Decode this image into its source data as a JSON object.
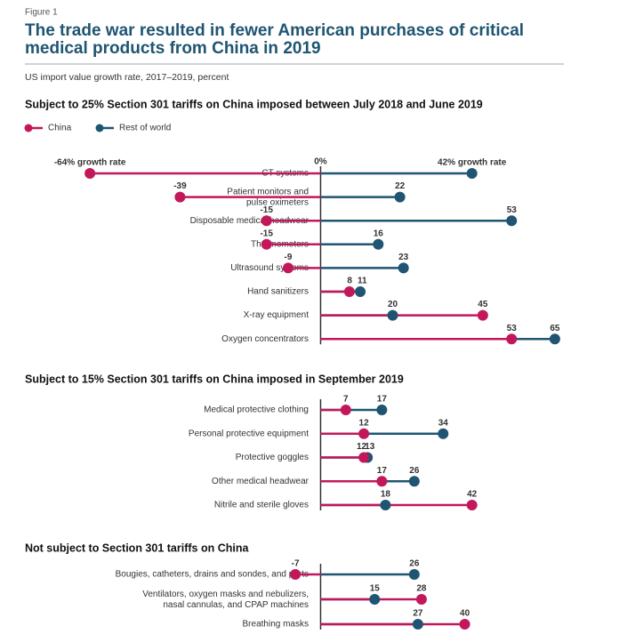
{
  "header": {
    "figure": "Figure 1",
    "title": [
      "The trade war resulted in fewer American purchases of critical",
      "medical products from China in 2019"
    ],
    "subtitle": "US import value growth rate, 2017–2019, percent"
  },
  "chart_data": [
    {
      "type": "lollipop",
      "title": "Subject to 25% Section 301 tariffs on China imposed between July 2018 and June 2019",
      "categories": [
        "CT systems",
        "Patient monitors and\npulse oximeters",
        "Disposable medical headwear",
        "Thermometers",
        "Ultrasound systems",
        "Hand sanitizers",
        "X-ray equipment",
        "Oxygen concentrators"
      ],
      "series": [
        {
          "name": "China",
          "color": "#c2185b",
          "values": [
            -64,
            -39,
            -15,
            -15,
            -9,
            8,
            45,
            53
          ],
          "value_labels": [
            "-64% growth rate",
            "-39",
            "-15",
            "-15",
            "-9",
            "8",
            "45",
            "53"
          ]
        },
        {
          "name": "Rest of world",
          "color": "#1f5572",
          "values": [
            42,
            22,
            53,
            16,
            23,
            11,
            20,
            65
          ],
          "value_labels": [
            "42% growth rate",
            "22",
            "53",
            "16",
            "23",
            "11",
            "20",
            "65"
          ]
        }
      ],
      "xlim": [
        -66,
        67
      ],
      "xticks": [
        {
          "value": 0,
          "label": "0%"
        }
      ],
      "legend": "top-left"
    },
    {
      "type": "lollipop",
      "title": "Subject to 15% Section 301 tariffs on China imposed in September 2019",
      "categories": [
        "Medical protective clothing",
        "Personal protective equipment",
        "Protective goggles",
        "Other medical headwear",
        "Nitrile and sterile gloves"
      ],
      "series": [
        {
          "name": "China",
          "color": "#c2185b",
          "values": [
            7,
            12,
            12,
            17,
            42
          ]
        },
        {
          "name": "Rest of world",
          "color": "#1f5572",
          "values": [
            17,
            34,
            13,
            26,
            18
          ]
        }
      ],
      "xlim": [
        -66,
        67
      ]
    },
    {
      "type": "lollipop",
      "title": "Not subject to Section 301 tariffs on China",
      "categories": [
        "Bougies, catheters, drains and sondes, and parts",
        "Ventilators, oxygen masks and nebulizers,\nnasal cannulas, and CPAP machines",
        "Breathing masks"
      ],
      "series": [
        {
          "name": "China",
          "color": "#c2185b",
          "values": [
            -7,
            28,
            40
          ]
        },
        {
          "name": "Rest of world",
          "color": "#1f5572",
          "values": [
            26,
            15,
            27
          ]
        }
      ],
      "xlim": [
        -66,
        67
      ]
    }
  ]
}
